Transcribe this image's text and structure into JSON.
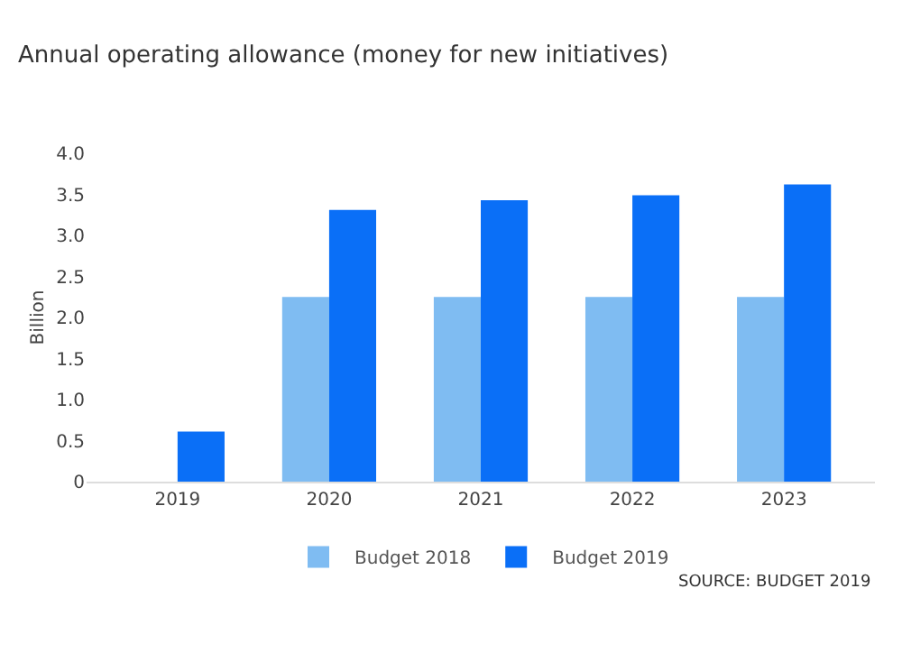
{
  "chart_data": {
    "type": "bar",
    "title": "Annual operating allowance (money for new initiatives)",
    "ylabel": "Billion",
    "categories": [
      "2019",
      "2020",
      "2021",
      "2022",
      "2023"
    ],
    "series": [
      {
        "name": "Budget 2018",
        "color": "#7fbcf2",
        "values": [
          null,
          2.25,
          2.25,
          2.25,
          2.25
        ]
      },
      {
        "name": "Budget 2019",
        "color": "#0a6ff7",
        "values": [
          0.61,
          3.31,
          3.43,
          3.49,
          3.62
        ]
      }
    ],
    "ylim": [
      0,
      4
    ],
    "yticks": [
      0,
      0.5,
      {
        "value": 1,
        "label": "1.0"
      },
      1.5,
      {
        "value": 2,
        "label": "2.0"
      },
      2.5,
      {
        "value": 3,
        "label": "3.0"
      },
      3.5,
      {
        "value": 4,
        "label": "4.0"
      }
    ],
    "legend": "bottom",
    "annotations": [
      "SOURCE: BUDGET 2019"
    ]
  }
}
